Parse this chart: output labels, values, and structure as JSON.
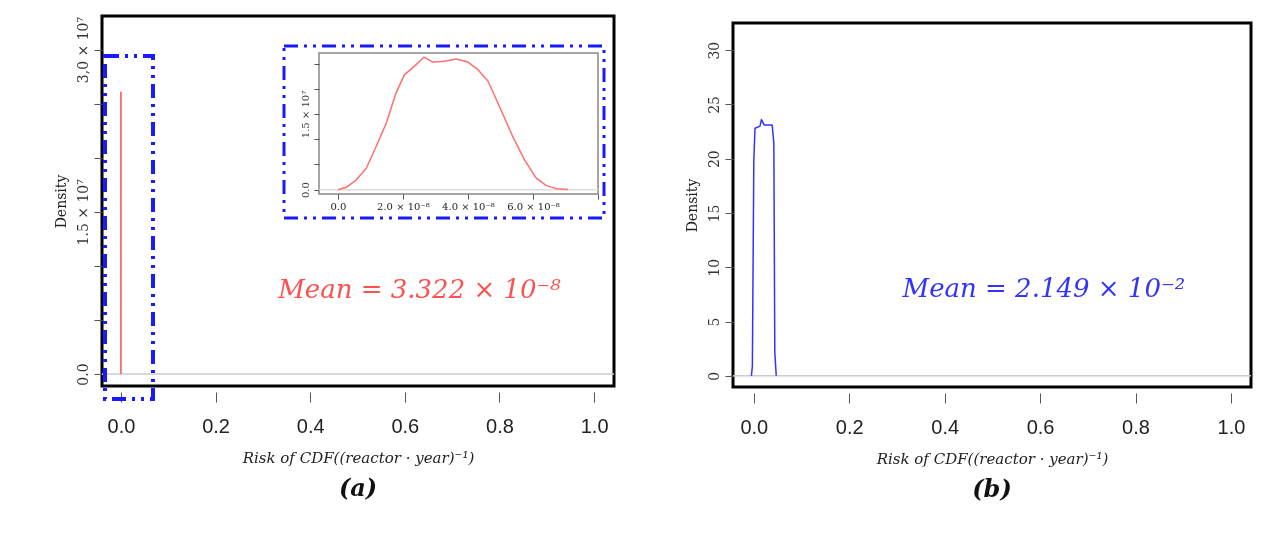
{
  "chart_data": [
    {
      "type": "line",
      "title": "(a)",
      "xlabel": "Risk of CDF((reactor · year)⁻¹)",
      "ylabel": "Density",
      "xlim": [
        -0.04,
        1.042
      ],
      "ylim": [
        -1100000,
        33100000
      ],
      "xticks": [
        {
          "value": 0,
          "label": "0.0"
        },
        {
          "value": 0.2,
          "label": "0.2"
        },
        {
          "value": 0.4,
          "label": "0.4"
        },
        {
          "value": 0.6,
          "label": "0.6"
        },
        {
          "value": 0.8,
          "label": "0.8"
        },
        {
          "value": 1,
          "label": "1.0"
        }
      ],
      "yticks": [
        {
          "value": 0,
          "label": "0.0"
        },
        {
          "value": 5000000,
          "label": null
        },
        {
          "value": 10000000,
          "label": null
        },
        {
          "value": 15000000,
          "label": "1.5 × 10⁷"
        },
        {
          "value": 20000000,
          "label": null
        },
        {
          "value": 25000000,
          "label": null
        },
        {
          "value": 30000000,
          "label": "3,0 × 10⁷"
        }
      ],
      "series": [
        {
          "color": "#ff5050",
          "x": [
            0,
            0
          ],
          "values": [
            0,
            26100000
          ]
        }
      ],
      "ref_lines": [
        {
          "axis": "y",
          "value": 0,
          "color": "#cccccc"
        }
      ],
      "annotations": [
        "Mean = 3.322 × 10⁻⁸"
      ]
    },
    {
      "type": "line",
      "xlim": [
        -5.8e-09,
        8e-08
      ],
      "ylim": [
        -860000,
        27100000
      ],
      "xticks": [
        {
          "value": 0,
          "label": "0.0"
        },
        {
          "value": 2e-08,
          "label": "2.0 × 10⁻⁸"
        },
        {
          "value": 4e-08,
          "label": "4.0 × 10⁻⁸"
        },
        {
          "value": 6e-08,
          "label": "6.0 × 10⁻⁸"
        },
        {
          "value": 8e-08,
          "label": null
        }
      ],
      "yticks": [
        {
          "value": 0,
          "label": "0.0"
        },
        {
          "value": 5000000,
          "label": null
        },
        {
          "value": 10000000,
          "label": null
        },
        {
          "value": 15000000,
          "label": "1.5 × 10⁷"
        },
        {
          "value": 20000000,
          "label": null
        },
        {
          "value": 25000000,
          "label": null
        }
      ],
      "series": [
        {
          "color": "#ff7070",
          "x": [
            0,
            2.6e-09,
            5.6e-09,
            8.7e-09,
            1.18e-08,
            1.49e-08,
            1.79e-08,
            2.05e-08,
            2.36e-08,
            2.65e-08,
            2.92e-08,
            3.23e-08,
            3.64e-08,
            4e-08,
            4.31e-08,
            4.62e-08,
            4.97e-08,
            5.38e-08,
            5.74e-08,
            6.1e-08,
            6.41e-08,
            6.72e-08,
            7.08e-08
          ],
          "values": [
            0,
            460000,
            1900000,
            4200000,
            8600000,
            13200000,
            19200000,
            22800000,
            24500000,
            26300000,
            25300000,
            25400000,
            25900000,
            25300000,
            23800000,
            21500000,
            16500000,
            10500000,
            5900000,
            2300000,
            800000,
            200000,
            50000
          ]
        }
      ],
      "ref_lines": [
        {
          "axis": "y",
          "value": 0,
          "color": "#dddddd"
        }
      ]
    },
    {
      "type": "line",
      "title": "(b)",
      "xlabel": "Risk of CDF((reactor · year)⁻¹)",
      "ylabel": "Density",
      "xlim": [
        -0.0436,
        1.042
      ],
      "ylim": [
        -1.03,
        32.5
      ],
      "xticks": [
        {
          "value": 0,
          "label": "0.0"
        },
        {
          "value": 0.2,
          "label": "0.2"
        },
        {
          "value": 0.4,
          "label": "0.4"
        },
        {
          "value": 0.6,
          "label": "0.6"
        },
        {
          "value": 0.8,
          "label": "0.8"
        },
        {
          "value": 1,
          "label": "1.0"
        }
      ],
      "yticks": [
        0,
        5,
        10,
        15,
        20,
        25,
        30
      ],
      "series": [
        {
          "color": "#3333ff",
          "x": [
            -0.005,
            -0.003,
            0,
            0.0025,
            0.013,
            0.016,
            0.022,
            0.0385,
            0.042,
            0.044,
            0.047
          ],
          "values": [
            0,
            0.9,
            19.7,
            22.8,
            23.0,
            23.6,
            23.1,
            23.1,
            21.4,
            2.2,
            0
          ]
        }
      ],
      "ref_lines": [
        {
          "axis": "y",
          "value": 0,
          "color": "#cccccc"
        }
      ],
      "annotations": [
        "Mean = 2.149 × 10⁻²"
      ]
    }
  ]
}
